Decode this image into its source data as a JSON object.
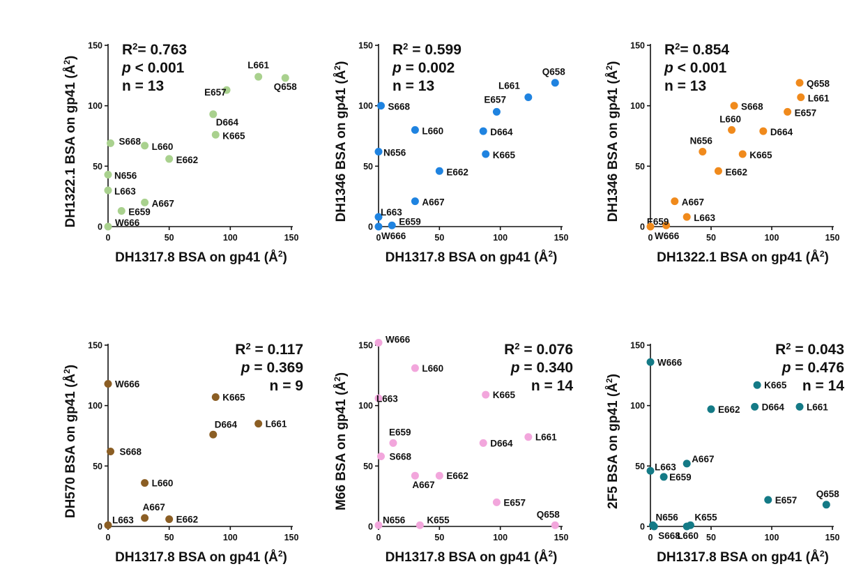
{
  "chart_data": [
    {
      "type": "scatter",
      "color": "#a9d18e",
      "stats": [
        "R²= 0.763",
        "p < 0.001",
        "n = 13"
      ],
      "stats_align": "left",
      "xlabel": "DH1317.8 BSA on gp41 (Å²)",
      "ylabel": "DH1322.1 BSA on gp41 (Å²)",
      "xlim": [
        0,
        150
      ],
      "ylim": [
        0,
        150
      ],
      "xticks": [
        "0",
        "50",
        "100",
        "150"
      ],
      "yticks": [
        "0",
        "50",
        "100",
        "150"
      ],
      "points": [
        {
          "label": "L661",
          "x": 123,
          "y": 124
        },
        {
          "label": "Q658",
          "x": 145,
          "y": 123
        },
        {
          "label": "E657",
          "x": 97,
          "y": 113
        },
        {
          "label": "D664",
          "x": 86,
          "y": 93
        },
        {
          "label": "K665",
          "x": 88,
          "y": 76
        },
        {
          "label": "S668",
          "x": 2,
          "y": 69
        },
        {
          "label": "L660",
          "x": 30,
          "y": 67
        },
        {
          "label": "E662",
          "x": 50,
          "y": 56
        },
        {
          "label": "N656",
          "x": 0,
          "y": 43
        },
        {
          "label": "L663",
          "x": 0,
          "y": 30
        },
        {
          "label": "A667",
          "x": 30,
          "y": 20
        },
        {
          "label": "E659",
          "x": 11,
          "y": 13
        },
        {
          "label": "W666",
          "x": 0,
          "y": 0
        }
      ]
    },
    {
      "type": "scatter",
      "color": "#1f83e0",
      "stats": [
        "R² = 0.599",
        "p = 0.002",
        "n = 13"
      ],
      "stats_align": "left",
      "xlabel": "DH1317.8 BSA on gp41 (Å²)",
      "ylabel": "DH1346 BSA on gp41 (Å²)",
      "xlim": [
        0,
        150
      ],
      "ylim": [
        0,
        150
      ],
      "xticks": [
        "0",
        "50",
        "100",
        "150"
      ],
      "yticks": [
        "0",
        "50",
        "100",
        "150"
      ],
      "points": [
        {
          "label": "Q658",
          "x": 145,
          "y": 119
        },
        {
          "label": "L661",
          "x": 123,
          "y": 107
        },
        {
          "label": "E657",
          "x": 97,
          "y": 95
        },
        {
          "label": "S668",
          "x": 2,
          "y": 100
        },
        {
          "label": "L660",
          "x": 30,
          "y": 80
        },
        {
          "label": "D664",
          "x": 86,
          "y": 79
        },
        {
          "label": "N656",
          "x": 0,
          "y": 62
        },
        {
          "label": "K665",
          "x": 88,
          "y": 60
        },
        {
          "label": "E662",
          "x": 50,
          "y": 46
        },
        {
          "label": "A667",
          "x": 30,
          "y": 21
        },
        {
          "label": "L663",
          "x": 0,
          "y": 8
        },
        {
          "label": "E659",
          "x": 11,
          "y": 1
        },
        {
          "label": "W666",
          "x": 0,
          "y": 0
        }
      ]
    },
    {
      "type": "scatter",
      "color": "#f08a1c",
      "stats": [
        "R²= 0.854",
        "p < 0.001",
        "n = 13"
      ],
      "stats_align": "left",
      "xlabel": "DH1322.1 BSA on gp41 (Å²)",
      "ylabel": "DH1346 BSA on gp41 (Å²)",
      "xlim": [
        0,
        150
      ],
      "ylim": [
        0,
        150
      ],
      "xticks": [
        "0",
        "50",
        "100",
        "150"
      ],
      "yticks": [
        "0",
        "50",
        "100",
        "150"
      ],
      "points": [
        {
          "label": "Q658",
          "x": 123,
          "y": 119
        },
        {
          "label": "L661",
          "x": 124,
          "y": 107
        },
        {
          "label": "S668",
          "x": 69,
          "y": 100
        },
        {
          "label": "E657",
          "x": 113,
          "y": 95
        },
        {
          "label": "L660",
          "x": 67,
          "y": 80
        },
        {
          "label": "D664",
          "x": 93,
          "y": 79
        },
        {
          "label": "N656",
          "x": 43,
          "y": 62
        },
        {
          "label": "K665",
          "x": 76,
          "y": 60
        },
        {
          "label": "E662",
          "x": 56,
          "y": 46
        },
        {
          "label": "A667",
          "x": 20,
          "y": 21
        },
        {
          "label": "E659",
          "x": 13,
          "y": 1
        },
        {
          "label": "L663",
          "x": 30,
          "y": 8
        },
        {
          "label": "W666",
          "x": 0,
          "y": 0
        }
      ]
    },
    {
      "type": "scatter",
      "color": "#8b5e24",
      "stats": [
        "R² = 0.117",
        "p = 0.369",
        "n = 9"
      ],
      "stats_align": "right",
      "xlabel": "DH1317.8 BSA on gp41 (Å²)",
      "ylabel": "DH570 BSA on gp41 (Å²)",
      "xlim": [
        0,
        150
      ],
      "ylim": [
        0,
        150
      ],
      "xticks": [
        "0",
        "50",
        "100",
        "150"
      ],
      "yticks": [
        "0",
        "50",
        "100",
        "150"
      ],
      "points": [
        {
          "label": "W666",
          "x": 0,
          "y": 118
        },
        {
          "label": "K665",
          "x": 88,
          "y": 107
        },
        {
          "label": "L661",
          "x": 123,
          "y": 85
        },
        {
          "label": "D664",
          "x": 86,
          "y": 76
        },
        {
          "label": "S668",
          "x": 2,
          "y": 62
        },
        {
          "label": "L660",
          "x": 30,
          "y": 36
        },
        {
          "label": "A667",
          "x": 30,
          "y": 7
        },
        {
          "label": "E662",
          "x": 50,
          "y": 6
        },
        {
          "label": "L663",
          "x": 0,
          "y": 1
        }
      ]
    },
    {
      "type": "scatter",
      "color": "#f2a6dc",
      "stats": [
        "R² = 0.076",
        "p = 0.340",
        "n = 14"
      ],
      "stats_align": "right",
      "xlabel": "DH1317.8 BSA on gp41 (Å²)",
      "ylabel": "M66 BSA on gp41 (Å²)",
      "xlim": [
        0,
        150
      ],
      "ylim": [
        0,
        150
      ],
      "xticks": [
        "0",
        "50",
        "100",
        "150"
      ],
      "yticks": [
        "0",
        "50",
        "100",
        "150"
      ],
      "points": [
        {
          "label": "W666",
          "x": 0,
          "y": 152
        },
        {
          "label": "L660",
          "x": 30,
          "y": 131
        },
        {
          "label": "K665",
          "x": 88,
          "y": 109
        },
        {
          "label": "L663",
          "x": 0,
          "y": 106
        },
        {
          "label": "L661",
          "x": 123,
          "y": 74
        },
        {
          "label": "E659",
          "x": 12,
          "y": 69
        },
        {
          "label": "D664",
          "x": 86,
          "y": 69
        },
        {
          "label": "S668",
          "x": 2,
          "y": 58
        },
        {
          "label": "E662",
          "x": 50,
          "y": 42
        },
        {
          "label": "A667",
          "x": 30,
          "y": 42
        },
        {
          "label": "E657",
          "x": 97,
          "y": 20
        },
        {
          "label": "N656",
          "x": 0,
          "y": 1
        },
        {
          "label": "K655",
          "x": 34,
          "y": 1
        },
        {
          "label": "Q658",
          "x": 145,
          "y": 1
        }
      ]
    },
    {
      "type": "scatter",
      "color": "#147a86",
      "stats": [
        "R² = 0.043",
        "p = 0.476",
        "n = 14"
      ],
      "stats_align": "right",
      "xlabel": "DH1317.8 BSA on gp41 (Å²)",
      "ylabel": "2F5 BSA on gp41 (Å²)",
      "xlim": [
        0,
        150
      ],
      "ylim": [
        0,
        150
      ],
      "xticks": [
        "0",
        "50",
        "100",
        "150"
      ],
      "yticks": [
        "0",
        "50",
        "100",
        "150"
      ],
      "points": [
        {
          "label": "W666",
          "x": 0,
          "y": 136
        },
        {
          "label": "K665",
          "x": 88,
          "y": 117
        },
        {
          "label": "E662",
          "x": 50,
          "y": 97
        },
        {
          "label": "D664",
          "x": 86,
          "y": 99
        },
        {
          "label": "L661",
          "x": 123,
          "y": 99
        },
        {
          "label": "A667",
          "x": 30,
          "y": 52
        },
        {
          "label": "L663",
          "x": 0,
          "y": 46
        },
        {
          "label": "E659",
          "x": 11,
          "y": 41
        },
        {
          "label": "E657",
          "x": 97,
          "y": 22
        },
        {
          "label": "Q658",
          "x": 145,
          "y": 18
        },
        {
          "label": "N656",
          "x": 2,
          "y": 1
        },
        {
          "label": "S668",
          "x": 3,
          "y": 0
        },
        {
          "label": "L660",
          "x": 30,
          "y": 0
        },
        {
          "label": "K655",
          "x": 33,
          "y": 1
        }
      ]
    }
  ]
}
